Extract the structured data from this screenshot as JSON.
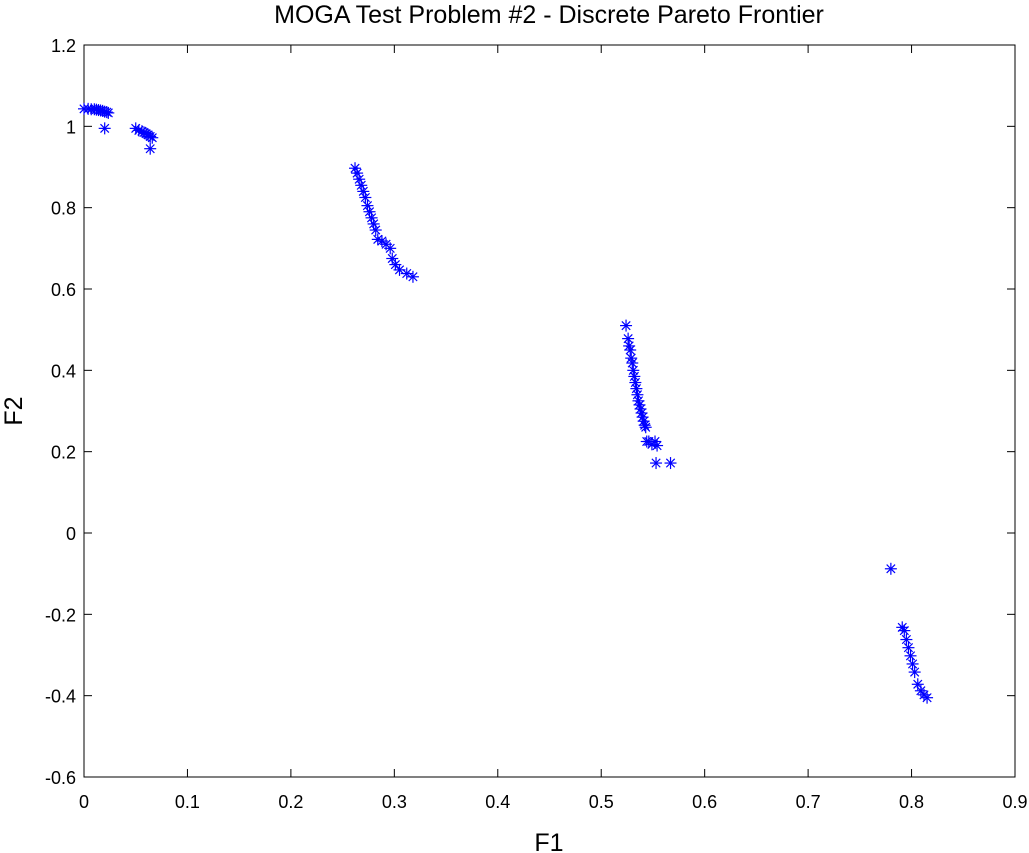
{
  "chart_data": {
    "type": "scatter",
    "title": "MOGA Test Problem #2 - Discrete Pareto Frontier",
    "xlabel": "F1",
    "ylabel": "F2",
    "xlim": [
      0,
      0.9
    ],
    "ylim": [
      -0.6,
      1.2
    ],
    "xticks": [
      0,
      0.1,
      0.2,
      0.3,
      0.4,
      0.5,
      0.6,
      0.7,
      0.8,
      0.9
    ],
    "xtick_labels": [
      "0",
      "0.1",
      "0.2",
      "0.3",
      "0.4",
      "0.5",
      "0.6",
      "0.7",
      "0.8",
      "0.9"
    ],
    "yticks": [
      -0.6,
      -0.4,
      -0.2,
      0,
      0.2,
      0.4,
      0.6,
      0.8,
      1,
      1.2
    ],
    "ytick_labels": [
      "-0.6",
      "-0.4",
      "-0.2",
      "0",
      "0.2",
      "0.4",
      "0.6",
      "0.8",
      "1",
      "1.2"
    ],
    "grid": false,
    "marker": "asterisk",
    "marker_color": "#0000ff",
    "series": [
      {
        "x": [
          0.0,
          0.004,
          0.007,
          0.01,
          0.012,
          0.014,
          0.016,
          0.018,
          0.02,
          0.022,
          0.0235,
          0.02,
          0.05,
          0.053,
          0.056,
          0.058,
          0.06,
          0.062,
          0.064,
          0.066,
          0.064,
          0.262,
          0.264,
          0.266,
          0.268,
          0.27,
          0.272,
          0.274,
          0.276,
          0.278,
          0.28,
          0.282,
          0.284,
          0.288,
          0.292,
          0.296,
          0.298,
          0.301,
          0.305,
          0.312,
          0.318,
          0.524,
          0.526,
          0.527,
          0.528,
          0.529,
          0.53,
          0.531,
          0.532,
          0.533,
          0.534,
          0.535,
          0.536,
          0.537,
          0.538,
          0.539,
          0.54,
          0.541,
          0.542,
          0.543,
          0.544,
          0.546,
          0.549,
          0.552,
          0.554,
          0.553,
          0.567,
          0.78,
          0.791,
          0.793,
          0.795,
          0.797,
          0.799,
          0.801,
          0.803,
          0.806,
          0.809,
          0.812,
          0.815
        ],
        "y": [
          1.043,
          1.043,
          1.042,
          1.042,
          1.041,
          1.04,
          1.039,
          1.038,
          1.036,
          1.035,
          1.033,
          0.995,
          0.995,
          0.99,
          0.988,
          0.985,
          0.982,
          0.979,
          0.975,
          0.972,
          0.945,
          0.897,
          0.885,
          0.87,
          0.855,
          0.84,
          0.825,
          0.805,
          0.79,
          0.775,
          0.76,
          0.745,
          0.722,
          0.718,
          0.71,
          0.7,
          0.675,
          0.66,
          0.647,
          0.638,
          0.63,
          0.51,
          0.478,
          0.46,
          0.45,
          0.43,
          0.418,
          0.4,
          0.385,
          0.37,
          0.355,
          0.34,
          0.325,
          0.315,
          0.305,
          0.295,
          0.285,
          0.275,
          0.265,
          0.26,
          0.225,
          0.225,
          0.218,
          0.225,
          0.215,
          0.172,
          0.172,
          -0.088,
          -0.232,
          -0.24,
          -0.262,
          -0.282,
          -0.302,
          -0.322,
          -0.342,
          -0.372,
          -0.388,
          -0.398,
          -0.405
        ]
      }
    ]
  }
}
